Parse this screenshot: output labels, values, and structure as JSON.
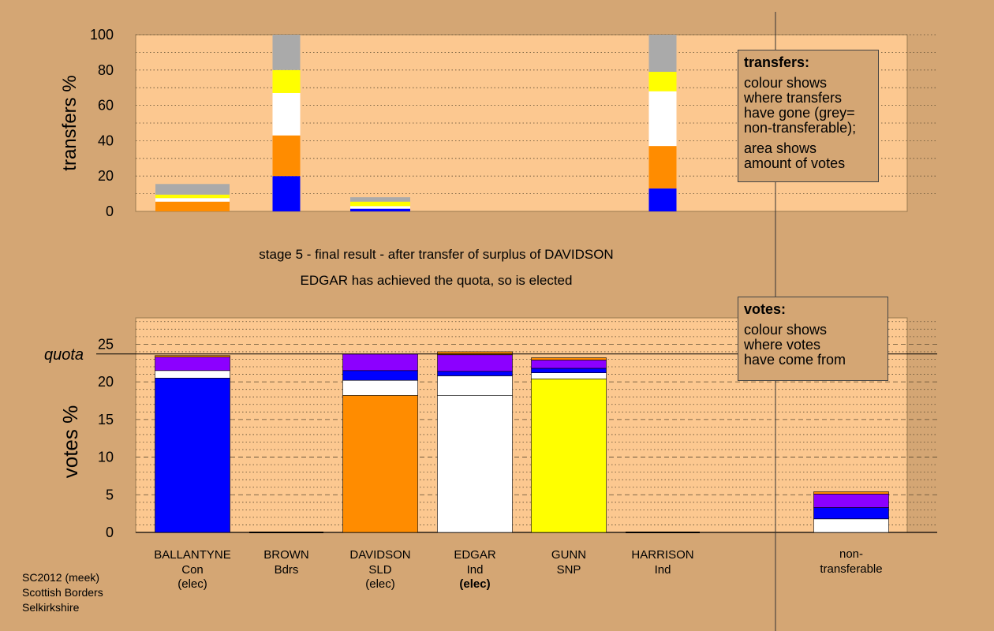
{
  "chart_data": [
    {
      "type": "bar",
      "stacked": true,
      "ylabel": "transfers %",
      "ylim": [
        0,
        100
      ],
      "yticks": [
        0,
        20,
        40,
        60,
        80,
        100
      ],
      "grid": "dotted",
      "categories": [
        "BALLANTYNE",
        "BROWN",
        "DAVIDSON",
        "EDGAR",
        "GUNN",
        "HARRISON"
      ],
      "segments": [
        {
          "category": "BALLANTYNE",
          "values": [
            {
              "color": "#ff8c00",
              "value": 5.5
            },
            {
              "color": "#ffffff",
              "value": 2
            },
            {
              "color": "#ffff00",
              "value": 2
            },
            {
              "color": "#aaaaaa",
              "value": 6
            }
          ]
        },
        {
          "category": "BROWN",
          "values": [
            {
              "color": "#0000ff",
              "value": 20
            },
            {
              "color": "#ff8c00",
              "value": 23
            },
            {
              "color": "#ffffff",
              "value": 24
            },
            {
              "color": "#ffff00",
              "value": 13
            },
            {
              "color": "#aaaaaa",
              "value": 20
            }
          ]
        },
        {
          "category": "DAVIDSON",
          "values": [
            {
              "color": "#0000ff",
              "value": 1.5
            },
            {
              "color": "#ffffff",
              "value": 1.5
            },
            {
              "color": "#ffff00",
              "value": 2.5
            },
            {
              "color": "#aaaaaa",
              "value": 2.5
            }
          ]
        },
        {
          "category": "EDGAR",
          "values": []
        },
        {
          "category": "GUNN",
          "values": []
        },
        {
          "category": "HARRISON",
          "values": [
            {
              "color": "#0000ff",
              "value": 13
            },
            {
              "color": "#ff8c00",
              "value": 24
            },
            {
              "color": "#ffffff",
              "value": 31
            },
            {
              "color": "#ffff00",
              "value": 11
            },
            {
              "color": "#aaaaaa",
              "value": 21
            }
          ]
        }
      ]
    },
    {
      "type": "bar",
      "stacked": true,
      "ylabel": "votes %",
      "ylim": [
        0,
        28.5
      ],
      "yticks": [
        0,
        5,
        10,
        15,
        20,
        25
      ],
      "grid": "dashed",
      "quota": 23.7,
      "quota_label": "quota",
      "categories": [
        "BALLANTYNE",
        "BROWN",
        "DAVIDSON",
        "EDGAR",
        "GUNN",
        "HARRISON",
        "non-transferable"
      ],
      "segments": [
        {
          "category": "BALLANTYNE",
          "values": [
            {
              "color": "#0000ff",
              "value": 20.5
            },
            {
              "color": "#ffffff",
              "value": 1.0
            },
            {
              "color": "#8c00ff",
              "value": 1.8
            },
            {
              "color": "#ff8c00",
              "value": 0.2
            }
          ]
        },
        {
          "category": "BROWN",
          "values": []
        },
        {
          "category": "DAVIDSON",
          "values": [
            {
              "color": "#ff8c00",
              "value": 18.2
            },
            {
              "color": "#ffffff",
              "value": 2.0
            },
            {
              "color": "#0000ff",
              "value": 1.3
            },
            {
              "color": "#8c00ff",
              "value": 2.2
            }
          ]
        },
        {
          "category": "EDGAR",
          "values": [
            {
              "color": "#ffffff",
              "value": 18.2
            },
            {
              "color": "#ffffff",
              "value": 2.6
            },
            {
              "color": "#0000ff",
              "value": 0.6
            },
            {
              "color": "#8c00ff",
              "value": 2.2
            },
            {
              "color": "#ff8c00",
              "value": 0.4
            }
          ]
        },
        {
          "category": "GUNN",
          "values": [
            {
              "color": "#ffff00",
              "value": 20.4
            },
            {
              "color": "#ffffff",
              "value": 0.8
            },
            {
              "color": "#0000ff",
              "value": 0.6
            },
            {
              "color": "#8c00ff",
              "value": 1.1
            },
            {
              "color": "#ff8c00",
              "value": 0.3
            }
          ]
        },
        {
          "category": "HARRISON",
          "values": []
        },
        {
          "category": "non-transferable",
          "values": [
            {
              "color": "#ffffff",
              "value": 1.8
            },
            {
              "color": "#0000ff",
              "value": 1.5
            },
            {
              "color": "#8c00ff",
              "value": 1.8
            },
            {
              "color": "#ff8c00",
              "value": 0.3
            }
          ]
        }
      ]
    }
  ],
  "candidates": [
    {
      "name": "BALLANTYNE",
      "party": "Con",
      "status": "(elec)",
      "status_bold": false
    },
    {
      "name": "BROWN",
      "party": "Bdrs",
      "status": "",
      "status_bold": false
    },
    {
      "name": "DAVIDSON",
      "party": "SLD",
      "status": "(elec)",
      "status_bold": false
    },
    {
      "name": "EDGAR",
      "party": "Ind",
      "status": "(elec)",
      "status_bold": true
    },
    {
      "name": "GUNN",
      "party": "SNP",
      "status": "",
      "status_bold": false
    },
    {
      "name": "HARRISON",
      "party": "Ind",
      "status": "",
      "status_bold": false
    }
  ],
  "nontransferable_label": [
    "non-",
    "transferable"
  ],
  "stage_title": "stage 5 - final result - after transfer of surplus of DAVIDSON",
  "stage_subtitle": "EDGAR has achieved the quota, so is elected",
  "legend_transfers": {
    "title": "transfers:",
    "para1": [
      "colour shows",
      "where transfers",
      "have gone (grey=",
      "non-transferable);"
    ],
    "para2": [
      "area shows",
      "amount of votes"
    ]
  },
  "legend_votes": {
    "title": "votes:",
    "lines": [
      "colour shows",
      "where votes",
      "have come from"
    ]
  },
  "footer": [
    "SC2012 (meek)",
    "Scottish Borders",
    "Selkirkshire"
  ]
}
